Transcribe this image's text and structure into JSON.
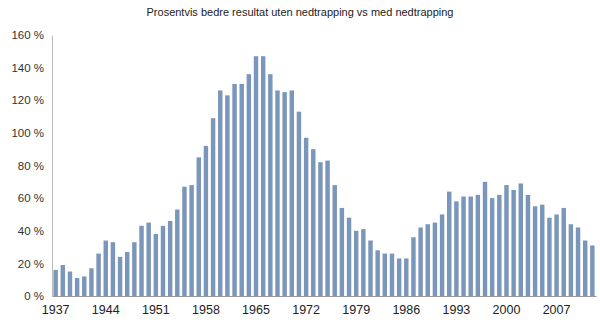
{
  "chart_data": {
    "type": "bar",
    "title": "Prosentvis bedre resultat uten nedtrapping vs med nedtrapping",
    "categories": [
      "1937",
      null,
      null,
      null,
      null,
      null,
      null,
      "1944",
      null,
      null,
      null,
      null,
      null,
      null,
      "1951",
      null,
      null,
      null,
      null,
      null,
      null,
      "1958",
      null,
      null,
      null,
      null,
      null,
      null,
      "1965",
      null,
      null,
      null,
      null,
      null,
      null,
      "1972",
      null,
      null,
      null,
      null,
      null,
      null,
      "1979",
      null,
      null,
      null,
      null,
      null,
      null,
      "1986",
      null,
      null,
      null,
      null,
      null,
      null,
      "1993",
      null,
      null,
      null,
      null,
      null,
      null,
      "2000",
      null,
      null,
      null,
      null,
      null,
      null,
      "2007",
      null,
      null,
      null,
      null,
      null
    ],
    "values": [
      16,
      19,
      15,
      11,
      12,
      17,
      26,
      34,
      33,
      24,
      27,
      33,
      43,
      45,
      38,
      43,
      46,
      53,
      67,
      68,
      85,
      92,
      109,
      126,
      123,
      130,
      130,
      136,
      147,
      147,
      136,
      126,
      125,
      126,
      113,
      97,
      90,
      82,
      83,
      68,
      54,
      48,
      40,
      41,
      34,
      28,
      26,
      26,
      23,
      23,
      36,
      42,
      44,
      45,
      50,
      64,
      58,
      61,
      61,
      62,
      70,
      60,
      62,
      68,
      65,
      69,
      62,
      55,
      56,
      48,
      50,
      54,
      44,
      42,
      34,
      31
    ],
    "color": "#7b96bb",
    "ylim": [
      0,
      160
    ],
    "yticks": [
      {
        "value": 0,
        "label": "0 %"
      },
      {
        "value": 20,
        "label": "20 %"
      },
      {
        "value": 40,
        "label": "40 %"
      },
      {
        "value": 60,
        "label": "60 %"
      },
      {
        "value": 80,
        "label": "80 %"
      },
      {
        "value": 100,
        "label": "100 %"
      },
      {
        "value": 120,
        "label": "120 %"
      },
      {
        "value": 140,
        "label": "140 %"
      },
      {
        "value": 160,
        "label": "160 %"
      }
    ],
    "grid": false
  }
}
